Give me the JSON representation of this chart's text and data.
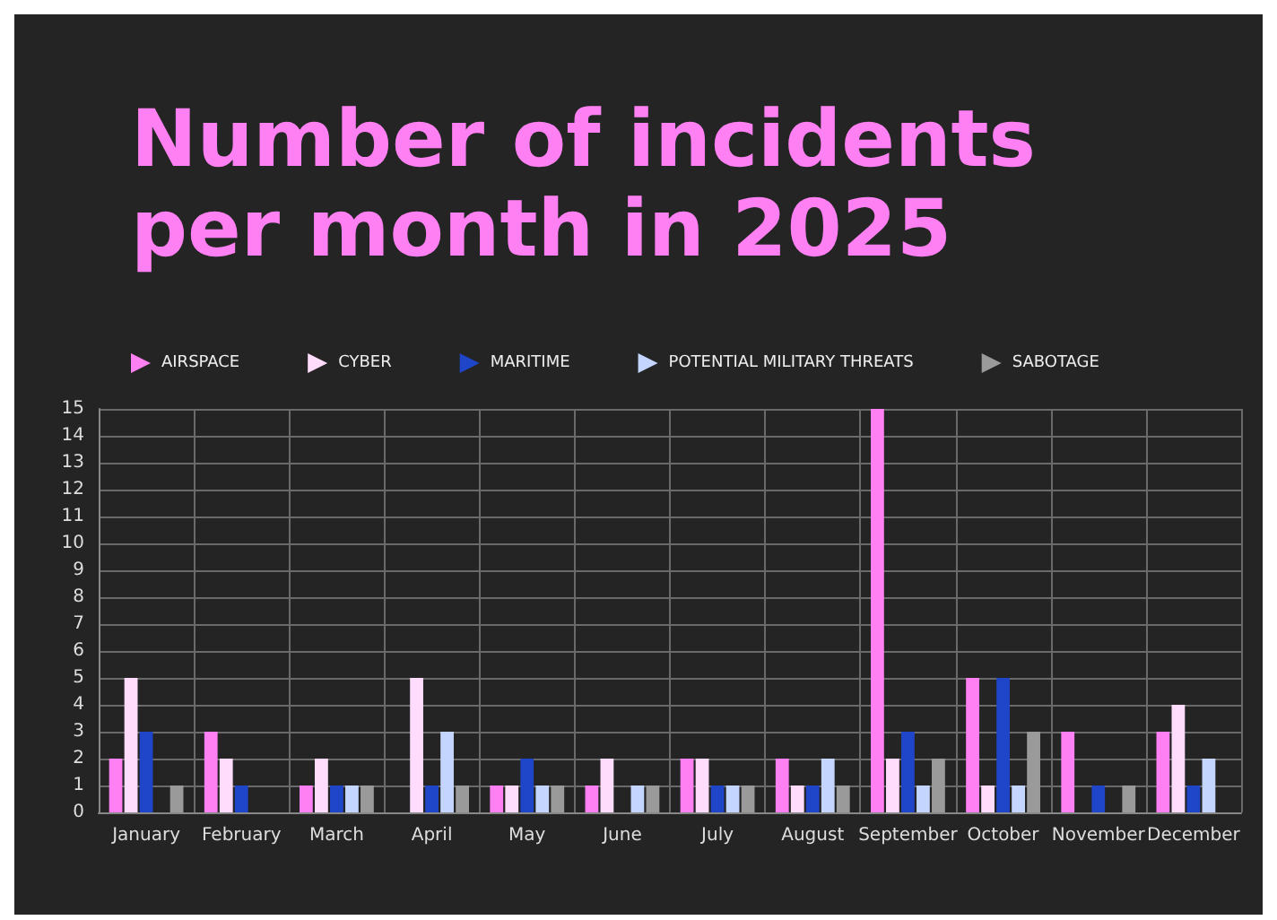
{
  "chart_data": {
    "type": "bar",
    "title": "Number of incidents\nper month in 2025",
    "categories": [
      "January",
      "February",
      "March",
      "April",
      "May",
      "June",
      "July",
      "August",
      "September",
      "October",
      "November",
      "December"
    ],
    "series": [
      {
        "name": "AIRSPACE",
        "color": "#ff80f2",
        "values": [
          2,
          3,
          1,
          0,
          1,
          1,
          2,
          2,
          15,
          5,
          3,
          3
        ]
      },
      {
        "name": "CYBER",
        "color": "#ffdcfb",
        "values": [
          5,
          2,
          2,
          5,
          1,
          2,
          2,
          1,
          2,
          1,
          0,
          4
        ]
      },
      {
        "name": "MARITIME",
        "color": "#1f45c8",
        "values": [
          3,
          1,
          1,
          1,
          2,
          0,
          1,
          1,
          3,
          5,
          1,
          1
        ]
      },
      {
        "name": "POTENTIAL MILITARY THREATS",
        "color": "#c4d6ff",
        "values": [
          0,
          0,
          1,
          3,
          1,
          1,
          1,
          2,
          1,
          1,
          0,
          2
        ]
      },
      {
        "name": "SABOTAGE",
        "color": "#9a9a9a",
        "values": [
          1,
          0,
          1,
          1,
          1,
          1,
          1,
          1,
          2,
          3,
          1,
          0
        ]
      }
    ],
    "ylim": [
      0,
      15
    ],
    "yticks": [
      0,
      1,
      2,
      3,
      4,
      5,
      6,
      7,
      8,
      9,
      10,
      11,
      12,
      13,
      14,
      15
    ],
    "grid": true,
    "legend": "top left"
  }
}
